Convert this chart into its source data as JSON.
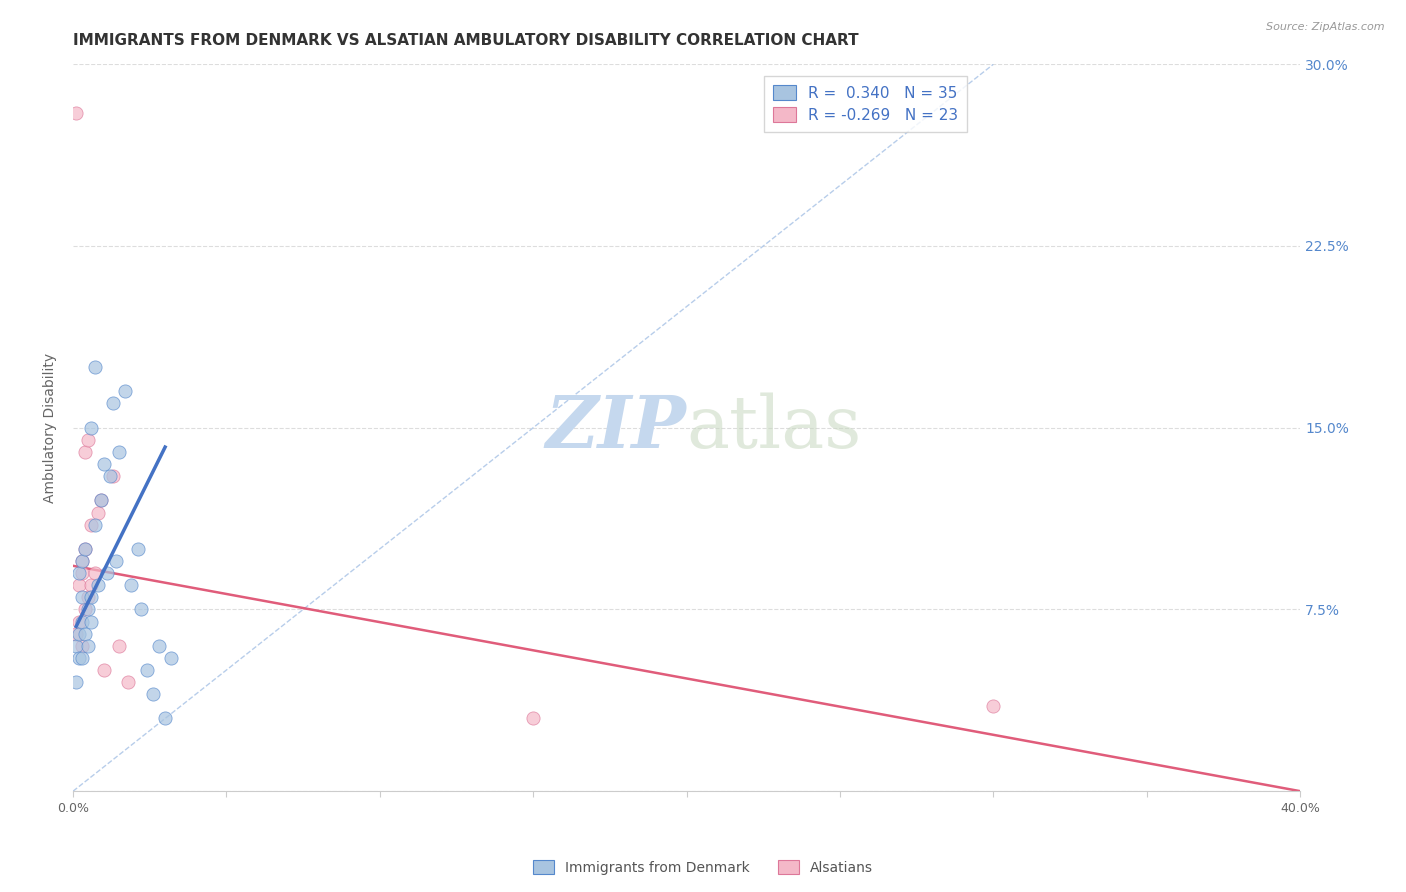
{
  "title": "IMMIGRANTS FROM DENMARK VS ALSATIAN AMBULATORY DISABILITY CORRELATION CHART",
  "source": "Source: ZipAtlas.com",
  "ylabel": "Ambulatory Disability",
  "xmin": 0.0,
  "xmax": 0.4,
  "ymin": 0.0,
  "ymax": 0.3,
  "yticks": [
    0.0,
    0.075,
    0.15,
    0.225,
    0.3
  ],
  "ytick_labels": [
    "",
    "7.5%",
    "15.0%",
    "22.5%",
    "30.0%"
  ],
  "blue_scatter_x": [
    0.001,
    0.001,
    0.002,
    0.002,
    0.002,
    0.003,
    0.003,
    0.003,
    0.003,
    0.004,
    0.004,
    0.005,
    0.005,
    0.006,
    0.006,
    0.006,
    0.007,
    0.007,
    0.008,
    0.009,
    0.01,
    0.011,
    0.012,
    0.013,
    0.014,
    0.015,
    0.017,
    0.019,
    0.021,
    0.022,
    0.024,
    0.026,
    0.028,
    0.03,
    0.032
  ],
  "blue_scatter_y": [
    0.06,
    0.045,
    0.055,
    0.065,
    0.09,
    0.055,
    0.07,
    0.08,
    0.095,
    0.065,
    0.1,
    0.06,
    0.075,
    0.07,
    0.08,
    0.15,
    0.11,
    0.175,
    0.085,
    0.12,
    0.135,
    0.09,
    0.13,
    0.16,
    0.095,
    0.14,
    0.165,
    0.085,
    0.1,
    0.075,
    0.05,
    0.04,
    0.06,
    0.03,
    0.055
  ],
  "pink_scatter_x": [
    0.001,
    0.001,
    0.002,
    0.002,
    0.003,
    0.003,
    0.003,
    0.004,
    0.004,
    0.004,
    0.005,
    0.005,
    0.006,
    0.006,
    0.007,
    0.008,
    0.009,
    0.01,
    0.013,
    0.015,
    0.018,
    0.15,
    0.3
  ],
  "pink_scatter_y": [
    0.28,
    0.065,
    0.07,
    0.085,
    0.06,
    0.09,
    0.095,
    0.075,
    0.1,
    0.14,
    0.08,
    0.145,
    0.085,
    0.11,
    0.09,
    0.115,
    0.12,
    0.05,
    0.13,
    0.06,
    0.045,
    0.03,
    0.035
  ],
  "blue_line_x": [
    0.001,
    0.03
  ],
  "blue_line_y": [
    0.068,
    0.142
  ],
  "pink_line_x": [
    0.0,
    0.4
  ],
  "pink_line_y": [
    0.093,
    0.0
  ],
  "diag_line_x": [
    0.0,
    0.3
  ],
  "diag_line_y": [
    0.0,
    0.3
  ],
  "legend_blue_label": "R =  0.340   N = 35",
  "legend_pink_label": "R = -0.269   N = 23",
  "bottom_legend_blue": "Immigrants from Denmark",
  "bottom_legend_pink": "Alsatians",
  "blue_fill_color": "#a8c4e0",
  "blue_edge_color": "#5588cc",
  "blue_line_color": "#4472c4",
  "pink_fill_color": "#f4b8c8",
  "pink_edge_color": "#dd7799",
  "pink_line_color": "#e05c7a",
  "diag_color": "#b0c8e8",
  "title_color": "#333333",
  "axis_label_color": "#666666",
  "right_tick_color": "#5588cc",
  "grid_color": "#dddddd",
  "marker_size": 90,
  "legend_fontsize": 11,
  "title_fontsize": 11
}
